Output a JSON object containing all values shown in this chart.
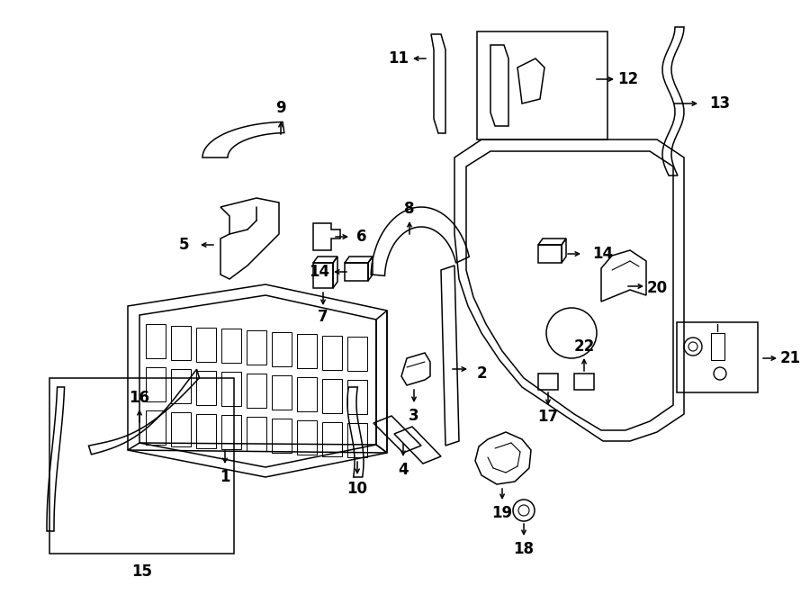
{
  "bg_color": "#ffffff",
  "line_color": "#000000",
  "figsize": [
    9.0,
    6.61
  ],
  "dpi": 100,
  "lw": 1.1,
  "label_fs": 12
}
